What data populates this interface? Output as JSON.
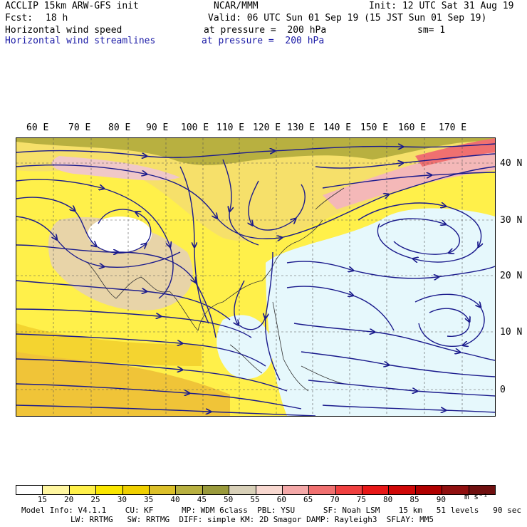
{
  "header": {
    "line1_left": "ACCLIP 15km ARW-GFS init",
    "line1_center": "NCAR/MMM",
    "line1_right": "Init: 12 UTC Sat 31 Aug 19",
    "fcst_label": "Fcst:",
    "fcst_value": "18 h",
    "valid": "Valid: 06 UTC Sun 01 Sep 19 (15 JST Sun 01 Sep 19)",
    "field1_name": "Horizontal wind speed",
    "field1_level": "at pressure =  200 hPa",
    "field1_sm": "sm= 1",
    "field2_name": "Horizontal wind streamlines",
    "field2_level": "at pressure =  200 hPa"
  },
  "map": {
    "lon_labels": [
      "60 E",
      "70 E",
      "80 E",
      "90 E",
      "100 E",
      "110 E",
      "120 E",
      "130 E",
      "140 E",
      "150 E",
      "160 E",
      "170 E"
    ],
    "lat_labels": [
      "40 N",
      "30 N",
      "20 N",
      "10 N",
      "0"
    ],
    "streamline_color": "#1a1a8c"
  },
  "colorbar": {
    "levels": [
      "15",
      "20",
      "25",
      "30",
      "35",
      "40",
      "45",
      "50",
      "55",
      "60",
      "65",
      "70",
      "75",
      "80",
      "85",
      "90"
    ],
    "units": "m s⁻¹",
    "colors": [
      "#ffffff",
      "#fff6a0",
      "#fff04a",
      "#fae600",
      "#f0d000",
      "#dcc02a",
      "#b8b040",
      "#9a9a3c",
      "#d8d0b8",
      "#f8d8d0",
      "#f4a8a8",
      "#f07070",
      "#f04040",
      "#e81818",
      "#d00808",
      "#b00000",
      "#901010",
      "#701010"
    ]
  },
  "footer": {
    "line1": "Model Info: V4.1.1    CU: KF      MP: WDM 6class  PBL: YSU      SF: Noah LSM    15 km   51 levels   90 sec",
    "line2": "LW: RRTMG   SW: RRTMG  DIFF: simple KM: 2D Smagor DAMP: Rayleigh3  SFLAY: MM5"
  }
}
